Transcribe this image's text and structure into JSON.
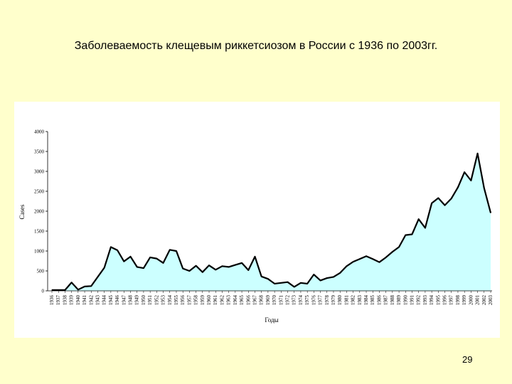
{
  "slide": {
    "title": "Заболеваемость клещевым риккетсиозом в России с 1936 по 2003гг.",
    "page_number": "29"
  },
  "colors": {
    "background": "#ffffcc",
    "panel": "#ffffff",
    "area_fill": "#ccffff",
    "line": "#000000"
  },
  "chart_data": {
    "type": "area",
    "title": "",
    "xlabel": "Годы",
    "ylabel": "Cases",
    "ylim": [
      0,
      4000
    ],
    "y_ticks": [
      0,
      500,
      1000,
      1500,
      2000,
      2500,
      3000,
      3500,
      4000
    ],
    "grid": false,
    "legend": "none",
    "x": [
      1936,
      1937,
      1938,
      1939,
      1940,
      1941,
      1942,
      1943,
      1944,
      1945,
      1946,
      1947,
      1948,
      1949,
      1950,
      1951,
      1952,
      1953,
      1954,
      1955,
      1956,
      1957,
      1958,
      1959,
      1960,
      1961,
      1962,
      1963,
      1964,
      1965,
      1966,
      1967,
      1968,
      1969,
      1970,
      1971,
      1972,
      1973,
      1974,
      1975,
      1976,
      1977,
      1978,
      1979,
      1980,
      1981,
      1982,
      1983,
      1984,
      1985,
      1986,
      1987,
      1988,
      1989,
      1990,
      1991,
      1992,
      1993,
      1994,
      1995,
      1996,
      1997,
      1998,
      1999,
      2000,
      2001,
      2002,
      2003
    ],
    "series": [
      {
        "values": [
          20,
          20,
          20,
          210,
          30,
          110,
          120,
          350,
          580,
          1100,
          1020,
          740,
          860,
          600,
          570,
          840,
          810,
          700,
          1030,
          1000,
          560,
          500,
          630,
          470,
          640,
          530,
          620,
          600,
          650,
          700,
          520,
          860,
          360,
          300,
          180,
          200,
          220,
          100,
          200,
          180,
          410,
          260,
          320,
          350,
          450,
          620,
          730,
          800,
          870,
          800,
          720,
          840,
          980,
          1100,
          1400,
          1420,
          1800,
          1580,
          2200,
          2330,
          2150,
          2320,
          2600,
          2980,
          2770,
          3450,
          2580,
          1960
        ]
      }
    ]
  }
}
